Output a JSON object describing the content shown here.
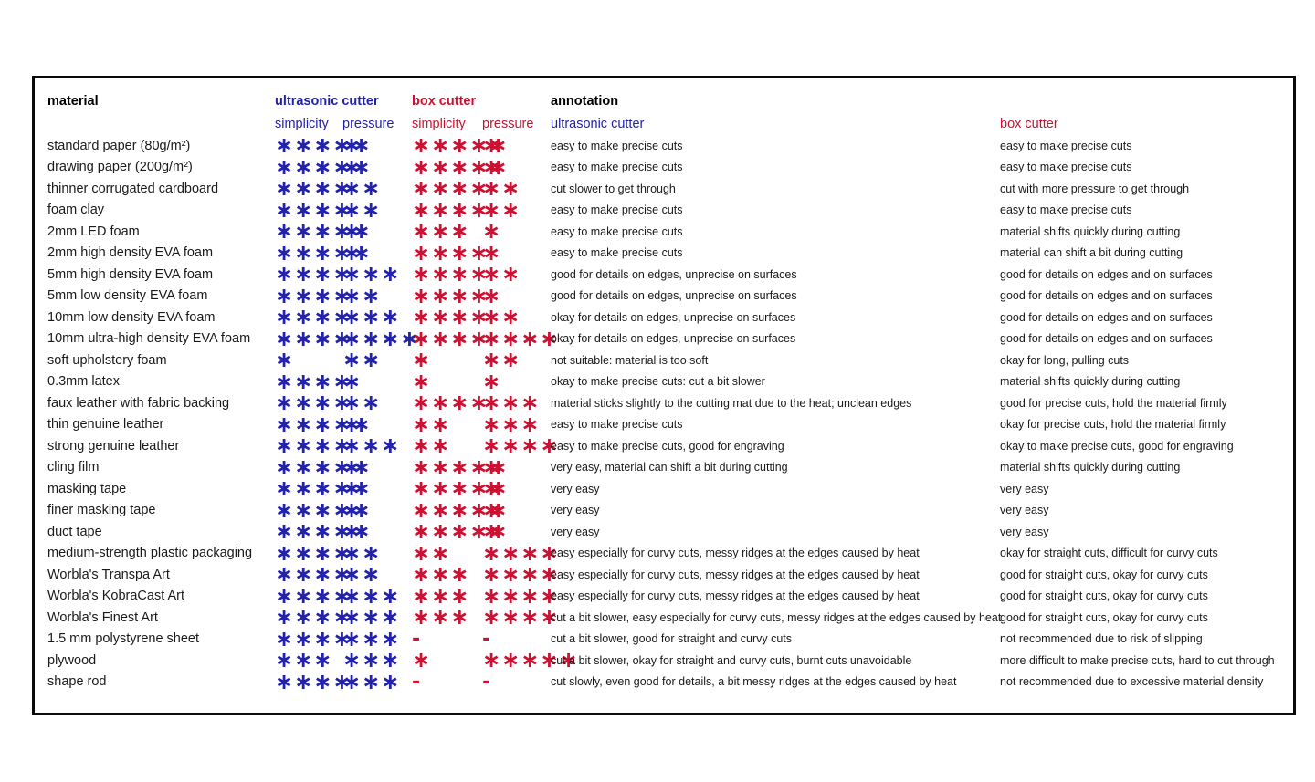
{
  "table": {
    "headers": {
      "material": "material",
      "ultrasonic_group": "ultrasonic cutter",
      "box_group": "box cutter",
      "annotation_group": "annotation",
      "us_simplicity": "simplicity",
      "us_pressure": "pressure",
      "box_simplicity": "simplicity",
      "box_pressure": "pressure",
      "annotation_ultrasonic": "ultrasonic cutter",
      "annotation_box": "box cutter"
    },
    "colors": {
      "ultrasonic": "#2222ad",
      "box": "#cc1133",
      "text": "#1a1a1a"
    },
    "star_glyph": "∗",
    "no_rating_glyph": "-",
    "rows": [
      {
        "material": "standard paper (80g/m²)",
        "us_simplicity": 5,
        "us_pressure": 1,
        "box_simplicity": 5,
        "box_pressure": 1,
        "ann_us": "easy to make precise cuts",
        "ann_box": "easy to make precise cuts"
      },
      {
        "material": "drawing paper (200g/m²)",
        "us_simplicity": 5,
        "us_pressure": 1,
        "box_simplicity": 5,
        "box_pressure": 1,
        "ann_us": "easy to make precise cuts",
        "ann_box": "easy to make precise cuts"
      },
      {
        "material": "thinner corrugated cardboard",
        "us_simplicity": 4,
        "us_pressure": 2,
        "box_simplicity": 4,
        "box_pressure": 2,
        "ann_us": "cut slower to get through",
        "ann_box": "cut with more pressure to get through"
      },
      {
        "material": "foam clay",
        "us_simplicity": 4,
        "us_pressure": 2,
        "box_simplicity": 4,
        "box_pressure": 2,
        "ann_us": "easy to make precise cuts",
        "ann_box": "easy to make precise cuts"
      },
      {
        "material": "2mm LED foam",
        "us_simplicity": 5,
        "us_pressure": 1,
        "box_simplicity": 3,
        "box_pressure": 1,
        "ann_us": "easy to make precise cuts",
        "ann_box": "material shifts quickly during cutting"
      },
      {
        "material": "2mm high density EVA foam",
        "us_simplicity": 5,
        "us_pressure": 1,
        "box_simplicity": 4,
        "box_pressure": 1,
        "ann_us": "easy to make precise cuts",
        "ann_box": "material can shift a bit during cutting"
      },
      {
        "material": "5mm high density EVA foam",
        "us_simplicity": 4,
        "us_pressure": 3,
        "box_simplicity": 4,
        "box_pressure": 2,
        "ann_us": "good for details on edges, unprecise on surfaces",
        "ann_box": "good for details on edges and on surfaces"
      },
      {
        "material": "5mm low density EVA foam",
        "us_simplicity": 4,
        "us_pressure": 2,
        "box_simplicity": 4,
        "box_pressure": 1,
        "ann_us": "good for details on edges, unprecise on surfaces",
        "ann_box": "good for details on edges and on surfaces"
      },
      {
        "material": "10mm low density EVA foam",
        "us_simplicity": 4,
        "us_pressure": 3,
        "box_simplicity": 4,
        "box_pressure": 2,
        "ann_us": "okay for details on edges, unprecise on surfaces",
        "ann_box": "good for details on edges and on surfaces"
      },
      {
        "material": "10mm ultra-high density EVA foam",
        "us_simplicity": 4,
        "us_pressure": 4,
        "box_simplicity": 4,
        "box_pressure": 4,
        "ann_us": "okay for details on edges, unprecise on surfaces",
        "ann_box": "good for details on edges and on surfaces"
      },
      {
        "material": "soft upholstery foam",
        "us_simplicity": 1,
        "us_pressure": 2,
        "box_simplicity": 1,
        "box_pressure": 2,
        "ann_us": "not suitable: material is too soft",
        "ann_box": "okay for long, pulling cuts"
      },
      {
        "material": "0.3mm latex",
        "us_simplicity": 4,
        "us_pressure": 1,
        "box_simplicity": 1,
        "box_pressure": 1,
        "ann_us": "okay to make precise cuts: cut a bit slower",
        "ann_box": "material shifts quickly during cutting"
      },
      {
        "material": "faux leather with fabric backing",
        "us_simplicity": 4,
        "us_pressure": 2,
        "box_simplicity": 4,
        "box_pressure": 3,
        "ann_us": "material sticks slightly to the cutting mat due to the heat; unclean edges",
        "ann_box": "good for precise cuts, hold the material firmly"
      },
      {
        "material": "thin genuine leather",
        "us_simplicity": 5,
        "us_pressure": 1,
        "box_simplicity": 2,
        "box_pressure": 3,
        "ann_us": "easy to make precise cuts",
        "ann_box": "okay for precise cuts, hold the material firmly"
      },
      {
        "material": "strong genuine leather",
        "us_simplicity": 4,
        "us_pressure": 3,
        "box_simplicity": 2,
        "box_pressure": 4,
        "ann_us": "easy to make precise cuts, good for engraving",
        "ann_box": "okay to make precise cuts, good for engraving"
      },
      {
        "material": "cling film",
        "us_simplicity": 5,
        "us_pressure": 1,
        "box_simplicity": 5,
        "box_pressure": 1,
        "ann_us": "very easy, material can shift a bit during cutting",
        "ann_box": "material shifts quickly during cutting"
      },
      {
        "material": "masking tape",
        "us_simplicity": 5,
        "us_pressure": 1,
        "box_simplicity": 5,
        "box_pressure": 1,
        "ann_us": "very easy",
        "ann_box": "very easy"
      },
      {
        "material": "finer masking tape",
        "us_simplicity": 5,
        "us_pressure": 1,
        "box_simplicity": 5,
        "box_pressure": 1,
        "ann_us": "very easy",
        "ann_box": "very easy"
      },
      {
        "material": "duct tape",
        "us_simplicity": 5,
        "us_pressure": 1,
        "box_simplicity": 5,
        "box_pressure": 1,
        "ann_us": "very easy",
        "ann_box": "very easy"
      },
      {
        "material": "medium-strength plastic packaging",
        "us_simplicity": 4,
        "us_pressure": 2,
        "box_simplicity": 2,
        "box_pressure": 4,
        "ann_us": "easy especially for curvy cuts, messy ridges at the edges caused by heat",
        "ann_box": "okay for straight cuts, difficult for curvy cuts"
      },
      {
        "material": "Worbla's Transpa Art",
        "us_simplicity": 4,
        "us_pressure": 2,
        "box_simplicity": 3,
        "box_pressure": 4,
        "ann_us": "easy especially for curvy cuts, messy ridges at the edges caused by heat",
        "ann_box": "good for straight cuts, okay for curvy cuts"
      },
      {
        "material": "Worbla's KobraCast Art",
        "us_simplicity": 4,
        "us_pressure": 3,
        "box_simplicity": 3,
        "box_pressure": 4,
        "ann_us": "easy especially for curvy cuts, messy ridges at the edges caused by heat",
        "ann_box": "good for straight cuts, okay for curvy cuts"
      },
      {
        "material": "Worbla's Finest Art",
        "us_simplicity": 4,
        "us_pressure": 3,
        "box_simplicity": 3,
        "box_pressure": 4,
        "ann_us": "cut a bit slower, easy especially for curvy cuts, messy ridges at the edges caused by heat",
        "ann_box": "good for straight cuts, okay for curvy cuts"
      },
      {
        "material": "1.5 mm polystyrene sheet",
        "us_simplicity": 4,
        "us_pressure": 3,
        "box_simplicity": null,
        "box_pressure": null,
        "ann_us": "cut a bit slower, good for straight and curvy cuts",
        "ann_box": "not recommended due to risk of slipping"
      },
      {
        "material": "plywood",
        "us_simplicity": 3,
        "us_pressure": 3,
        "box_simplicity": 1,
        "box_pressure": 5,
        "ann_us": "cut a bit slower, okay for straight and curvy cuts, burnt cuts unavoidable",
        "ann_box": "more difficult to make precise cuts, hard to cut through"
      },
      {
        "material": "shape rod",
        "us_simplicity": 4,
        "us_pressure": 3,
        "box_simplicity": null,
        "box_pressure": null,
        "ann_us": "cut slowly, even good for details, a bit messy ridges at the edges caused by heat",
        "ann_box": "not recommended due to excessive material density"
      }
    ]
  }
}
